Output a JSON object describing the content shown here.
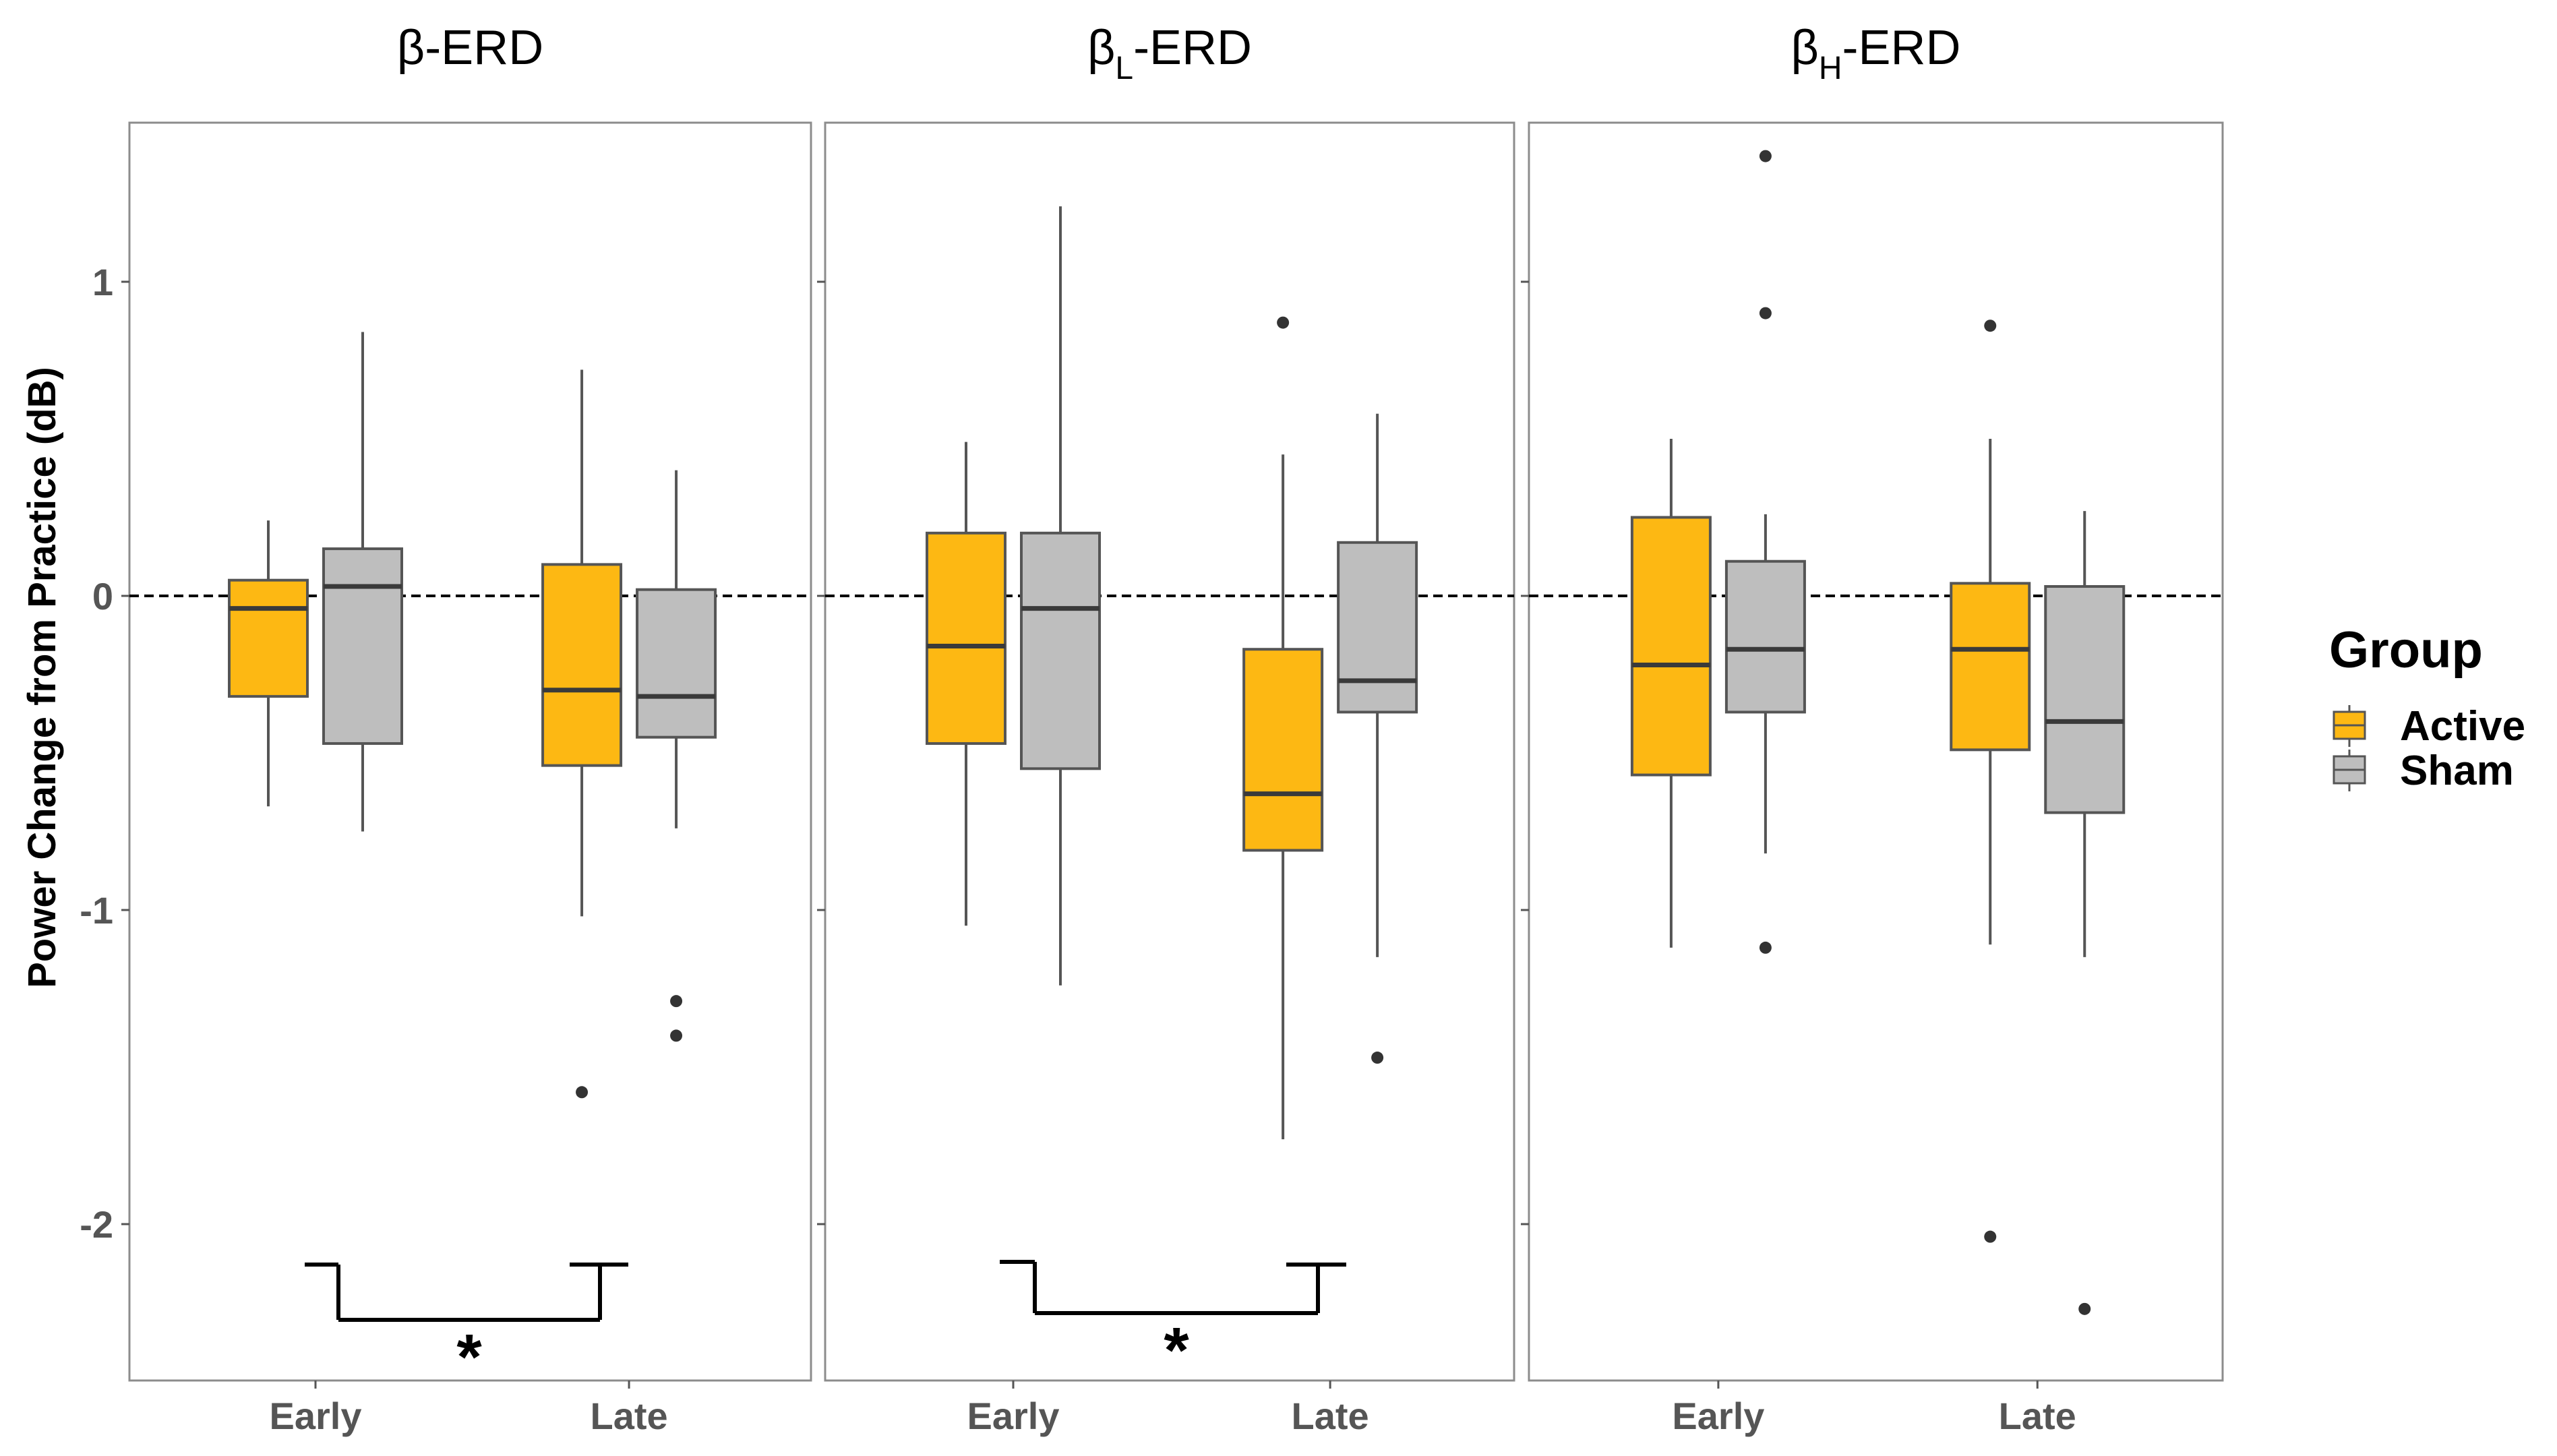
{
  "chart_data": {
    "type": "box",
    "ylabel": "Power Change from Practice (dB)",
    "xlabel": "",
    "ylim": [
      -2.5,
      1.5
    ],
    "yticks": [
      1,
      0,
      -1,
      -2
    ],
    "ytick_labels": [
      "1",
      "0",
      "-1",
      "-2"
    ],
    "reference_line": 0,
    "categories": [
      "Early",
      "Late"
    ],
    "legend": {
      "title": "Group",
      "position": "right",
      "entries": [
        {
          "name": "Active",
          "color": "#FDB813"
        },
        {
          "name": "Sham",
          "color": "#BEBEBE"
        }
      ]
    },
    "panels": [
      {
        "title_main": "β",
        "title_sub": "",
        "title_tail": "-ERD",
        "boxes": [
          {
            "category": "Early",
            "group": "Active",
            "whisker_low": -0.67,
            "q1": -0.32,
            "median": -0.04,
            "q3": 0.05,
            "whisker_high": 0.24,
            "outliers": []
          },
          {
            "category": "Early",
            "group": "Sham",
            "whisker_low": -0.75,
            "q1": -0.47,
            "median": 0.03,
            "q3": 0.15,
            "whisker_high": 0.84,
            "outliers": []
          },
          {
            "category": "Late",
            "group": "Active",
            "whisker_low": -1.02,
            "q1": -0.54,
            "median": -0.3,
            "q3": 0.1,
            "whisker_high": 0.72,
            "outliers": [
              -1.58
            ]
          },
          {
            "category": "Late",
            "group": "Sham",
            "whisker_low": -0.74,
            "q1": -0.45,
            "median": -0.32,
            "q3": 0.02,
            "whisker_high": 0.4,
            "outliers": [
              -1.29,
              -1.4
            ]
          }
        ],
        "significance": {
          "from": "Early",
          "to": "Late",
          "label": "*"
        }
      },
      {
        "title_main": "β",
        "title_sub": "L",
        "title_tail": "-ERD",
        "boxes": [
          {
            "category": "Early",
            "group": "Active",
            "whisker_low": -1.05,
            "q1": -0.47,
            "median": -0.16,
            "q3": 0.2,
            "whisker_high": 0.49,
            "outliers": []
          },
          {
            "category": "Early",
            "group": "Sham",
            "whisker_low": -1.24,
            "q1": -0.55,
            "median": -0.04,
            "q3": 0.2,
            "whisker_high": 1.24,
            "outliers": []
          },
          {
            "category": "Late",
            "group": "Active",
            "whisker_low": -1.73,
            "q1": -0.81,
            "median": -0.63,
            "q3": -0.17,
            "whisker_high": 0.45,
            "outliers": [
              0.87
            ]
          },
          {
            "category": "Late",
            "group": "Sham",
            "whisker_low": -1.15,
            "q1": -0.37,
            "median": -0.27,
            "q3": 0.17,
            "whisker_high": 0.58,
            "outliers": [
              -1.47
            ]
          }
        ],
        "significance": {
          "from": "Early",
          "to": "Late",
          "label": "*"
        }
      },
      {
        "title_main": "β",
        "title_sub": "H",
        "title_tail": "-ERD",
        "boxes": [
          {
            "category": "Early",
            "group": "Active",
            "whisker_low": -1.12,
            "q1": -0.57,
            "median": -0.22,
            "q3": 0.25,
            "whisker_high": 0.5,
            "outliers": []
          },
          {
            "category": "Early",
            "group": "Sham",
            "whisker_low": -0.82,
            "q1": -0.37,
            "median": -0.17,
            "q3": 0.11,
            "whisker_high": 0.26,
            "outliers": [
              0.9,
              1.4,
              -1.12
            ]
          },
          {
            "category": "Late",
            "group": "Active",
            "whisker_low": -1.11,
            "q1": -0.49,
            "median": -0.17,
            "q3": 0.04,
            "whisker_high": 0.5,
            "outliers": [
              0.86,
              -2.04
            ]
          },
          {
            "category": "Late",
            "group": "Sham",
            "whisker_low": -1.15,
            "q1": -0.69,
            "median": -0.4,
            "q3": 0.03,
            "whisker_high": 0.27,
            "outliers": [
              -2.27
            ]
          }
        ],
        "significance": null
      }
    ]
  }
}
